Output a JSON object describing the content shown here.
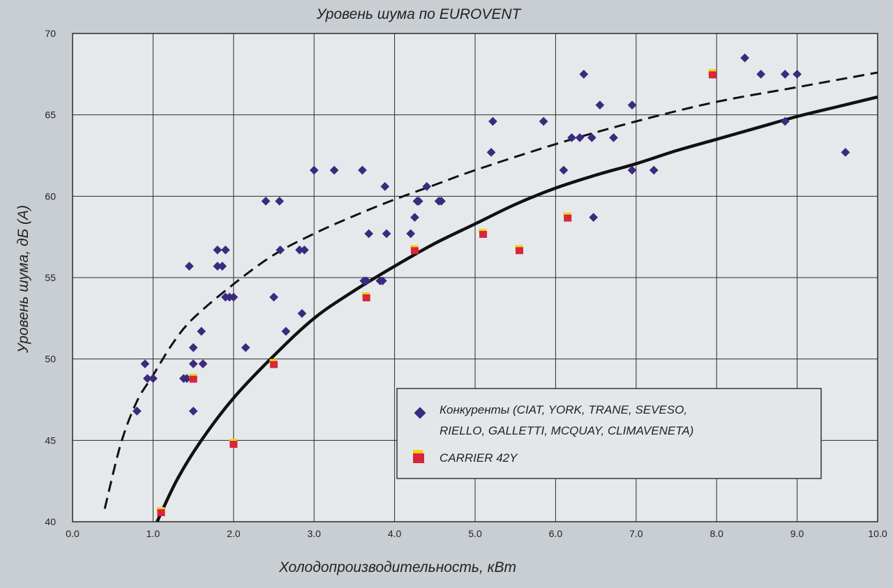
{
  "chart_data": {
    "type": "scatter",
    "title": "Уровень шума по EUROVENT",
    "xlabel": "Холодопроизводительность, кВт",
    "ylabel": "Уровень шума, дБ (А)",
    "xlim": [
      0,
      10
    ],
    "ylim": [
      40,
      70
    ],
    "xticks": [
      "0.0",
      "1.0",
      "2.0",
      "3.0",
      "4.0",
      "5.0",
      "6.0",
      "7.0",
      "8.0",
      "9.0",
      "10.0"
    ],
    "yticks": [
      "40",
      "45",
      "50",
      "55",
      "60",
      "65",
      "70"
    ],
    "grid": true,
    "legend_position": "bottom-right",
    "legend": {
      "competitors_line1": "Конкуренты (CIAT, YORK, TRANE, SEVESO,",
      "competitors_line2": "RIELLO, GALLETTI, MCQUAY, CLIMAVENETA)",
      "carrier": "CARRIER 42Y"
    },
    "series": [
      {
        "name": "Конкуренты (CIAT, YORK, TRANE, SEVESO, RIELLO, GALLETTI, MCQUAY, CLIMAVENETA)",
        "marker": "diamond",
        "color": "#3b2a7e",
        "points": [
          [
            0.8,
            46.8
          ],
          [
            0.9,
            49.7
          ],
          [
            0.93,
            48.8
          ],
          [
            1.0,
            48.8
          ],
          [
            1.38,
            48.8
          ],
          [
            1.42,
            48.8
          ],
          [
            1.45,
            55.7
          ],
          [
            1.5,
            50.7
          ],
          [
            1.5,
            49.7
          ],
          [
            1.5,
            46.8
          ],
          [
            1.6,
            51.7
          ],
          [
            1.62,
            49.7
          ],
          [
            1.8,
            56.7
          ],
          [
            1.8,
            55.7
          ],
          [
            1.86,
            55.7
          ],
          [
            1.9,
            56.7
          ],
          [
            1.9,
            53.8
          ],
          [
            1.95,
            53.8
          ],
          [
            2.0,
            53.8
          ],
          [
            2.15,
            50.7
          ],
          [
            2.4,
            59.7
          ],
          [
            2.5,
            53.8
          ],
          [
            2.57,
            59.7
          ],
          [
            2.58,
            56.7
          ],
          [
            2.65,
            51.7
          ],
          [
            2.82,
            56.7
          ],
          [
            2.88,
            56.7
          ],
          [
            2.85,
            52.8
          ],
          [
            3.0,
            61.6
          ],
          [
            3.25,
            61.6
          ],
          [
            3.6,
            61.6
          ],
          [
            3.62,
            54.8
          ],
          [
            3.65,
            54.8
          ],
          [
            3.68,
            57.7
          ],
          [
            3.82,
            54.8
          ],
          [
            3.85,
            54.8
          ],
          [
            3.88,
            60.6
          ],
          [
            3.9,
            57.7
          ],
          [
            4.2,
            57.7
          ],
          [
            4.25,
            58.7
          ],
          [
            4.28,
            59.7
          ],
          [
            4.3,
            59.7
          ],
          [
            4.4,
            60.6
          ],
          [
            4.55,
            59.7
          ],
          [
            4.58,
            59.7
          ],
          [
            5.22,
            64.6
          ],
          [
            5.2,
            62.7
          ],
          [
            5.85,
            64.6
          ],
          [
            6.1,
            61.6
          ],
          [
            6.2,
            63.6
          ],
          [
            6.3,
            63.6
          ],
          [
            6.35,
            67.5
          ],
          [
            6.45,
            63.6
          ],
          [
            6.47,
            58.7
          ],
          [
            6.55,
            65.6
          ],
          [
            6.72,
            63.6
          ],
          [
            6.95,
            65.6
          ],
          [
            6.95,
            61.6
          ],
          [
            7.22,
            61.6
          ],
          [
            7.95,
            67.5
          ],
          [
            8.35,
            68.5
          ],
          [
            8.55,
            67.5
          ],
          [
            8.85,
            67.5
          ],
          [
            8.85,
            64.6
          ],
          [
            9.0,
            67.5
          ],
          [
            9.6,
            62.7
          ]
        ]
      },
      {
        "name": "CARRIER 42Y",
        "marker": "square",
        "color": "#d7263d",
        "accent": "#f5d20a",
        "points": [
          [
            1.1,
            40.6
          ],
          [
            1.5,
            48.8
          ],
          [
            2.0,
            44.8
          ],
          [
            2.5,
            49.7
          ],
          [
            3.65,
            53.8
          ],
          [
            4.25,
            56.7
          ],
          [
            5.1,
            57.7
          ],
          [
            5.55,
            56.7
          ],
          [
            6.15,
            58.7
          ],
          [
            7.95,
            67.5
          ]
        ]
      },
      {
        "name": "",
        "type": "line",
        "style": "dashed",
        "color": "#111111",
        "points": [
          [
            0.4,
            40.8
          ],
          [
            0.6,
            44.8
          ],
          [
            0.8,
            47.4
          ],
          [
            1.0,
            49.0
          ],
          [
            1.25,
            51.0
          ],
          [
            1.5,
            52.5
          ],
          [
            2.0,
            54.6
          ],
          [
            2.5,
            56.4
          ],
          [
            3.0,
            57.7
          ],
          [
            3.5,
            58.8
          ],
          [
            4.0,
            59.8
          ],
          [
            4.5,
            60.7
          ],
          [
            5.0,
            61.6
          ],
          [
            6.0,
            63.2
          ],
          [
            7.0,
            64.6
          ],
          [
            8.0,
            65.8
          ],
          [
            9.0,
            66.7
          ],
          [
            10.0,
            67.6
          ]
        ]
      },
      {
        "name": "",
        "type": "line",
        "style": "solid",
        "color": "#111111",
        "points": [
          [
            1.05,
            40.0
          ],
          [
            1.3,
            42.6
          ],
          [
            1.6,
            45.0
          ],
          [
            2.0,
            47.6
          ],
          [
            2.5,
            50.2
          ],
          [
            3.0,
            52.5
          ],
          [
            3.5,
            54.2
          ],
          [
            4.0,
            55.7
          ],
          [
            4.5,
            57.1
          ],
          [
            5.0,
            58.3
          ],
          [
            5.5,
            59.5
          ],
          [
            6.0,
            60.5
          ],
          [
            6.5,
            61.3
          ],
          [
            7.0,
            62.0
          ],
          [
            7.5,
            62.8
          ],
          [
            8.0,
            63.5
          ],
          [
            8.5,
            64.2
          ],
          [
            9.0,
            64.9
          ],
          [
            9.5,
            65.5
          ],
          [
            10.0,
            66.1
          ]
        ]
      }
    ]
  }
}
